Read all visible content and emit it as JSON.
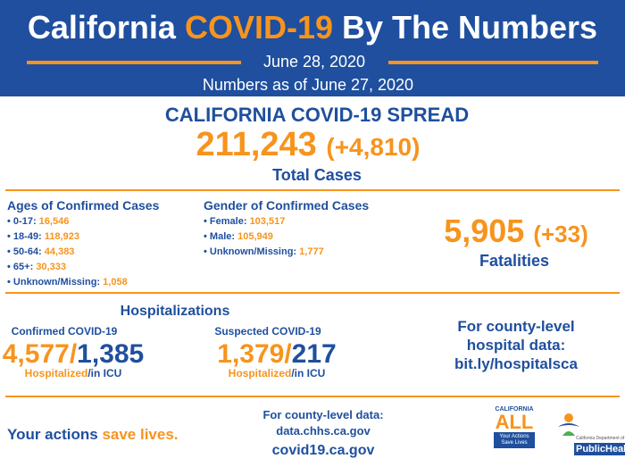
{
  "header": {
    "title_start": "California",
    "title_highlight": "COVID-19",
    "title_end": "By The Numbers",
    "date": "June 28, 2020",
    "as_of": "Numbers as of June 27, 2020"
  },
  "spread": {
    "heading": "CALIFORNIA COVID-19 SPREAD",
    "total": "211,243",
    "change": "(+4,810)",
    "label": "Total Cases"
  },
  "ages": {
    "heading": "Ages of Confirmed Cases",
    "items": [
      {
        "label": "0-17:",
        "value": "16,546"
      },
      {
        "label": "18-49:",
        "value": "118,923"
      },
      {
        "label": "50-64:",
        "value": "44,383"
      },
      {
        "label": "65+:",
        "value": "30,333"
      },
      {
        "label": "Unknown/Missing:",
        "value": "1,058"
      }
    ]
  },
  "gender": {
    "heading": "Gender of Confirmed Cases",
    "items": [
      {
        "label": "Female:",
        "value": "103,517"
      },
      {
        "label": "Male:",
        "value": "105,949"
      },
      {
        "label": "Unknown/Missing:",
        "value": "1,777"
      }
    ]
  },
  "fatalities": {
    "total": "5,905",
    "change": "(+33)",
    "label": "Fatalities"
  },
  "hospitalizations": {
    "heading": "Hospitalizations",
    "separator": "/",
    "hospitalized_label": "Hospitalized",
    "icu_label": "/in ICU",
    "groups": [
      {
        "title": "Confirmed COVID-19",
        "hospitalized": "4,577",
        "icu": "1,385"
      },
      {
        "title": "Suspected COVID-19",
        "hospitalized": "1,379",
        "icu": "217"
      }
    ]
  },
  "county_hospital": {
    "lines": [
      "For county-level",
      "hospital data:",
      "bit.ly/hospitalsca"
    ]
  },
  "footer": {
    "slogan_start": "Your actions",
    "slogan_highlight": "save lives.",
    "county_data_label": "For county-level data:",
    "county_data_url": "data.chhs.ca.gov",
    "website": "covid19.ca.gov",
    "logo_ca_top": "CALIFORNIA",
    "logo_ca_main": "ALL",
    "logo_ca_sub": "Your Actions Save Lives",
    "logo_cdph_top": "California Department of",
    "logo_cdph_main": "PublicHealth"
  }
}
